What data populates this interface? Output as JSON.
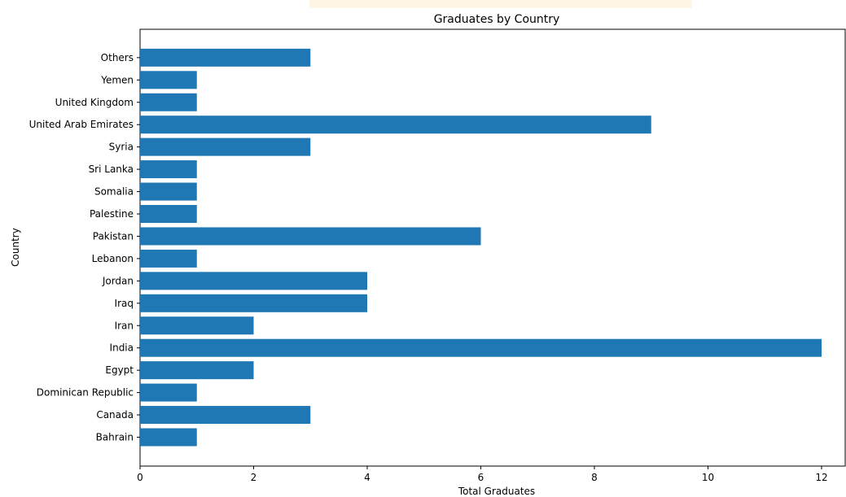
{
  "chart_data": {
    "type": "bar",
    "orientation": "horizontal",
    "title": "Graduates by Country",
    "xlabel": "Total Graduates",
    "ylabel": "Country",
    "categories": [
      "Bahrain",
      "Canada",
      "Dominican Republic",
      "Egypt",
      "India",
      "Iran",
      "Iraq",
      "Jordan",
      "Lebanon",
      "Pakistan",
      "Palestine",
      "Somalia",
      "Sri Lanka",
      "Syria",
      "United Arab Emirates",
      "United Kingdom",
      "Yemen",
      "Others"
    ],
    "values": [
      1,
      3,
      1,
      2,
      12,
      2,
      4,
      4,
      1,
      6,
      1,
      1,
      1,
      3,
      9,
      1,
      1,
      3
    ],
    "xlim": [
      0,
      12
    ],
    "xticks": [
      0,
      2,
      4,
      6,
      8,
      10,
      12
    ],
    "grid": false,
    "colors": {
      "bar": "#1f77b4"
    }
  }
}
